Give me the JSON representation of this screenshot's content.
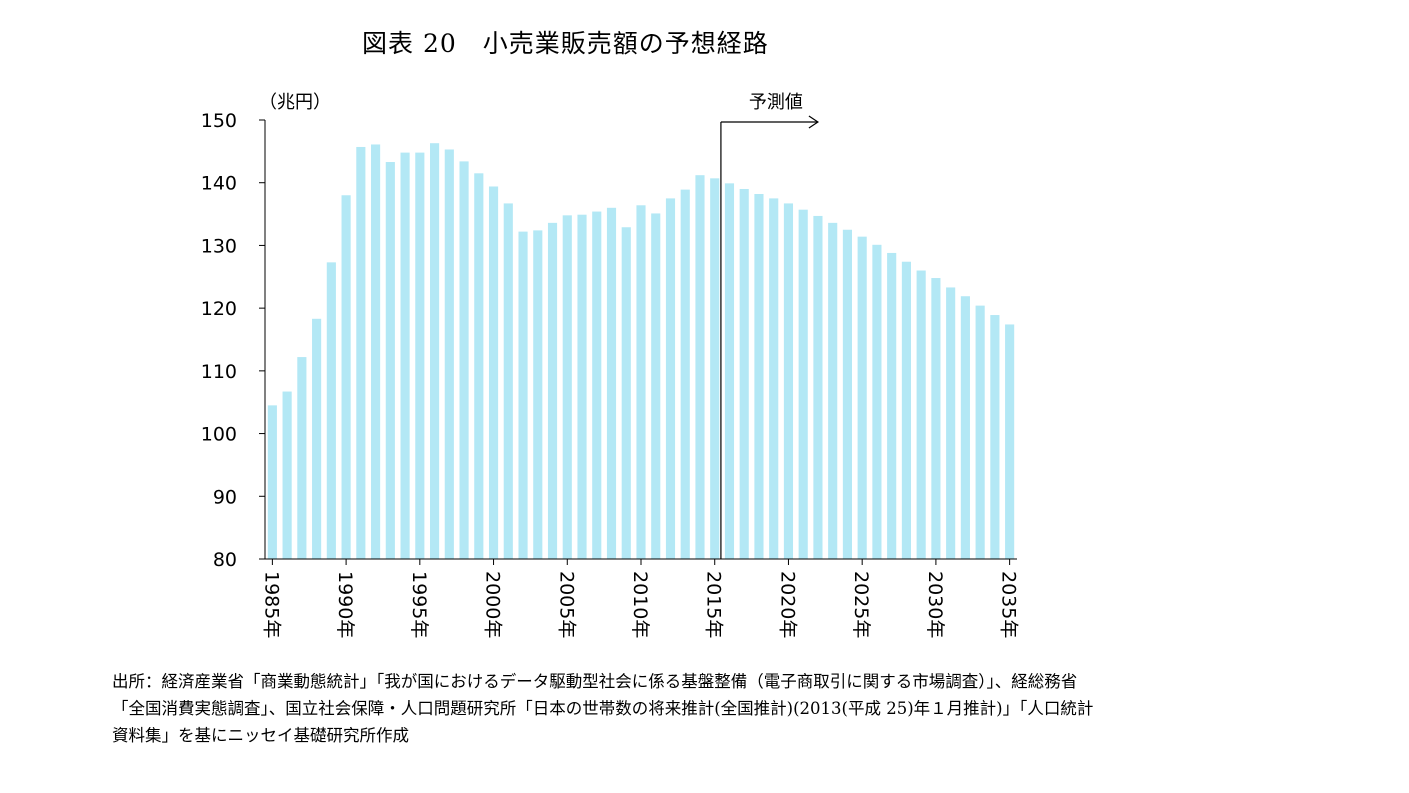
{
  "title": "図表 20　小売業販売額の予想経路",
  "source_lines": [
    "出所：経済産業省「商業動態統計」「我が国におけるデータ駆動型社会に係る基盤整備（電子商取引に関する市場調査）」、経総務省",
    "「全国消費実態調査」、国立社会保障・人口問題研究所「日本の世帯数の将来推計(全国推計)(2013(平成 25)年１月推計)」「人口統計",
    "資料集」を基にニッセイ基礎研究所作成"
  ],
  "colors": {
    "bar": "#B3E8F5",
    "axis": "#000000"
  },
  "chart_data": {
    "type": "bar",
    "ylabel": "（兆円）",
    "ylim": [
      80,
      150
    ],
    "yticks": [
      80,
      90,
      100,
      110,
      120,
      130,
      140,
      150
    ],
    "grid": false,
    "legend": "none",
    "tick_labels": [
      "1985年",
      "1990年",
      "1995年",
      "2000年",
      "2005年",
      "2010年",
      "2015年",
      "2020年",
      "2025年",
      "2030年",
      "2035年"
    ],
    "tick_years": [
      1985,
      1990,
      1995,
      2000,
      2005,
      2010,
      2015,
      2020,
      2025,
      2030,
      2035
    ],
    "forecast_label": "予測値",
    "forecast_start_year": 2015,
    "categories": [
      1985,
      1986,
      1987,
      1988,
      1989,
      1990,
      1991,
      1992,
      1993,
      1994,
      1995,
      1996,
      1997,
      1998,
      1999,
      2000,
      2001,
      2002,
      2003,
      2004,
      2005,
      2006,
      2007,
      2008,
      2009,
      2010,
      2011,
      2012,
      2013,
      2014,
      2015,
      2016,
      2017,
      2018,
      2019,
      2020,
      2021,
      2022,
      2023,
      2024,
      2025,
      2026,
      2027,
      2028,
      2029,
      2030,
      2031,
      2032,
      2033,
      2034,
      2035
    ],
    "values": [
      104.5,
      106.7,
      112.2,
      118.3,
      127.3,
      138.0,
      145.7,
      146.1,
      143.3,
      144.8,
      144.8,
      146.3,
      145.3,
      143.4,
      141.5,
      139.4,
      136.7,
      132.2,
      132.4,
      133.6,
      134.8,
      134.9,
      135.4,
      136.0,
      132.9,
      136.4,
      135.1,
      137.5,
      138.9,
      141.2,
      140.7,
      139.9,
      139.0,
      138.2,
      137.5,
      136.7,
      135.7,
      134.7,
      133.6,
      132.5,
      131.4,
      130.1,
      128.8,
      127.4,
      126.0,
      124.8,
      123.3,
      121.9,
      120.4,
      118.9,
      117.4
    ]
  }
}
